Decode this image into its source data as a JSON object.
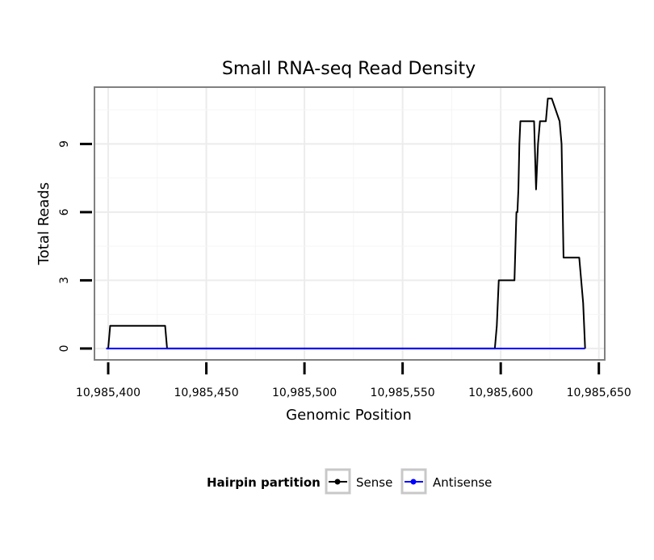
{
  "chart_data": {
    "type": "line",
    "title": "Small RNA-seq Read Density",
    "xlabel": "Genomic Position",
    "ylabel": "Total Reads",
    "xlim": [
      10985393,
      10985653
    ],
    "ylim": [
      -0.5,
      11.5
    ],
    "x_ticks": [
      10985400,
      10985450,
      10985500,
      10985550,
      10985600,
      10985650
    ],
    "x_tick_labels": [
      "10,985,400",
      "10,985,450",
      "10,985,500",
      "10,985,550",
      "10,985,600",
      "10,985,650"
    ],
    "y_ticks": [
      0,
      3,
      6,
      9
    ],
    "y_tick_labels": [
      "0",
      "3",
      "6",
      "9"
    ],
    "grid": true,
    "legend": {
      "title": "Hairpin partition",
      "placement": "bottom",
      "entries": [
        {
          "label": "Sense",
          "color": "#000000"
        },
        {
          "label": "Antisense",
          "color": "#0000ff"
        }
      ]
    },
    "series": [
      {
        "name": "Sense",
        "color": "#000000",
        "x": [
          10985399,
          10985400,
          10985401,
          10985429,
          10985430,
          10985597,
          10985598,
          10985599,
          10985607,
          10985608,
          10985608.5,
          10985609,
          10985609.5,
          10985610,
          10985611,
          10985617,
          10985618,
          10985619,
          10985620,
          10985621,
          10985623,
          10985624,
          10985626,
          10985630,
          10985631,
          10985632,
          10985640,
          10985641,
          10985642,
          10985643
        ],
        "y": [
          0,
          0,
          1,
          1,
          0,
          0,
          1,
          3,
          3,
          6,
          6,
          7,
          9,
          10,
          10,
          10,
          7,
          9,
          10,
          10,
          10,
          11,
          11,
          10,
          9,
          4,
          4,
          3,
          2,
          0
        ]
      },
      {
        "name": "Antisense",
        "color": "#0000ff",
        "x": [
          10985399,
          10985643
        ],
        "y": [
          0,
          0
        ]
      }
    ]
  }
}
